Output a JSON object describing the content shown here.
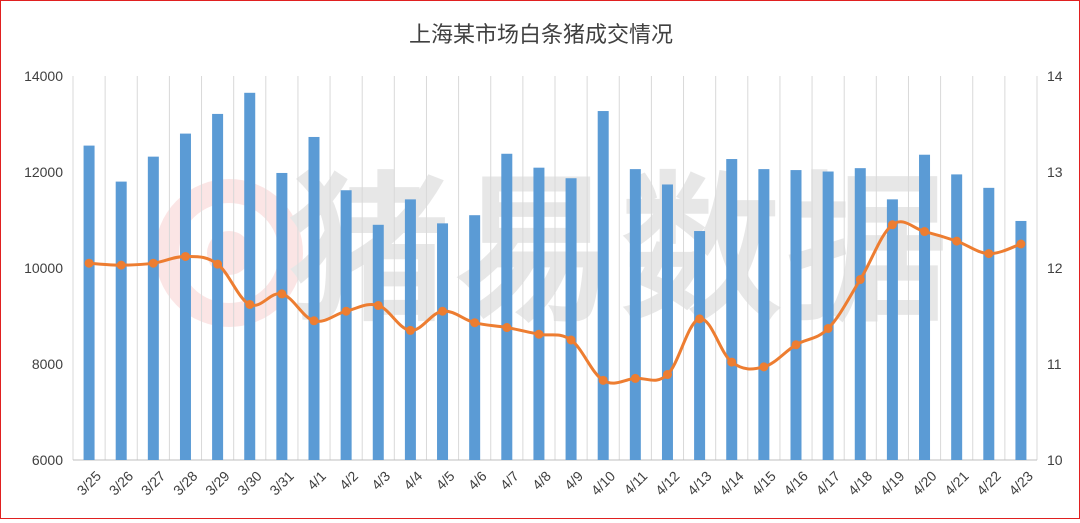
{
  "chart_data": {
    "type": "bar+line",
    "title": "上海某市场白条猪成交情况",
    "watermark": "猪易数据",
    "categories": [
      "3/25",
      "3/26",
      "3/27",
      "3/28",
      "3/29",
      "3/30",
      "3/31",
      "4/1",
      "4/2",
      "4/3",
      "4/4",
      "4/5",
      "4/6",
      "4/7",
      "4/8",
      "4/9",
      "4/10",
      "4/11",
      "4/12",
      "4/13",
      "4/14",
      "4/15",
      "4/16",
      "4/17",
      "4/18",
      "4/19",
      "4/20",
      "4/21",
      "4/22",
      "4/23"
    ],
    "series": [
      {
        "type": "bar",
        "axis": "left",
        "color": "#5b9bd5",
        "values": [
          12550,
          11800,
          12320,
          12800,
          13210,
          13650,
          11980,
          12730,
          11620,
          10900,
          11430,
          10930,
          11100,
          12380,
          12090,
          11870,
          13270,
          12060,
          11740,
          10770,
          12270,
          12060,
          12040,
          12010,
          12080,
          11430,
          12360,
          11950,
          11670,
          10980
        ]
      },
      {
        "type": "line",
        "axis": "right",
        "color": "#ed7d31",
        "values": [
          12.05,
          12.03,
          12.05,
          12.12,
          12.04,
          11.62,
          11.73,
          11.45,
          11.55,
          11.61,
          11.35,
          11.55,
          11.43,
          11.38,
          11.31,
          11.25,
          10.83,
          10.85,
          10.89,
          11.47,
          11.02,
          10.97,
          11.2,
          11.37,
          11.88,
          12.45,
          12.38,
          12.28,
          12.15,
          12.25
        ]
      }
    ],
    "y_left": {
      "min": 6000,
      "max": 14000,
      "ticks": [
        6000,
        8000,
        10000,
        12000,
        14000
      ]
    },
    "y_right": {
      "min": 10,
      "max": 14,
      "ticks": [
        10,
        11,
        12,
        13,
        14
      ]
    },
    "grid": "vertical"
  }
}
